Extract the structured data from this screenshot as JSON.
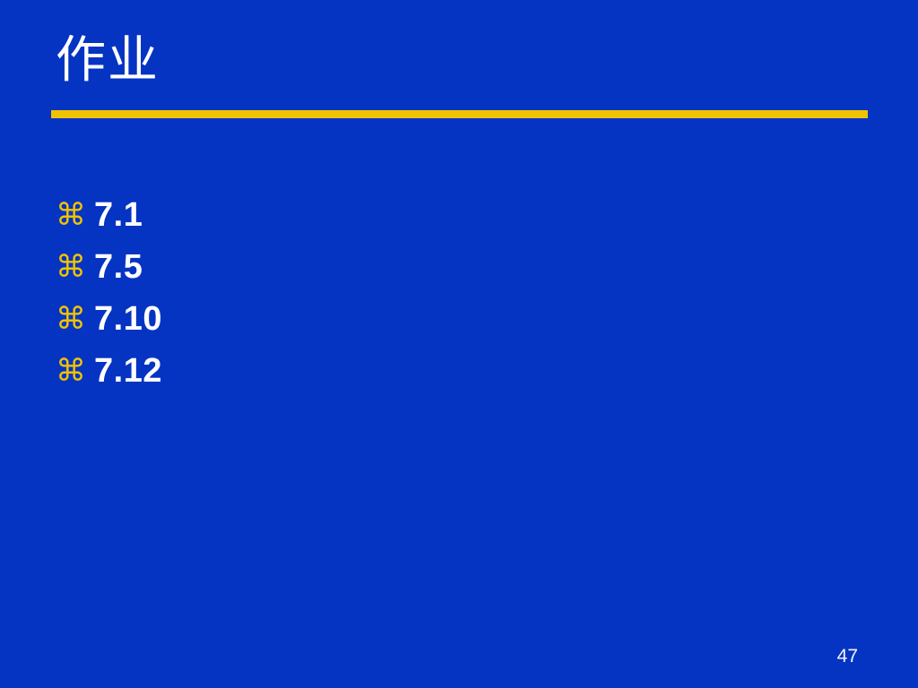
{
  "slide": {
    "colors": {
      "background": "#0534C3",
      "accent_gold": "#F0C300",
      "text_white": "#FFFFFF"
    },
    "title": "作业",
    "bullets": [
      {
        "marker_icon": "command-symbol",
        "marker": "⌘",
        "text": "7.1"
      },
      {
        "marker_icon": "command-symbol",
        "marker": "⌘",
        "text": "7.5"
      },
      {
        "marker_icon": "command-symbol",
        "marker": "⌘",
        "text": "7.10"
      },
      {
        "marker_icon": "command-symbol",
        "marker": "⌘",
        "text": "7.12"
      }
    ],
    "page_number": "47"
  }
}
